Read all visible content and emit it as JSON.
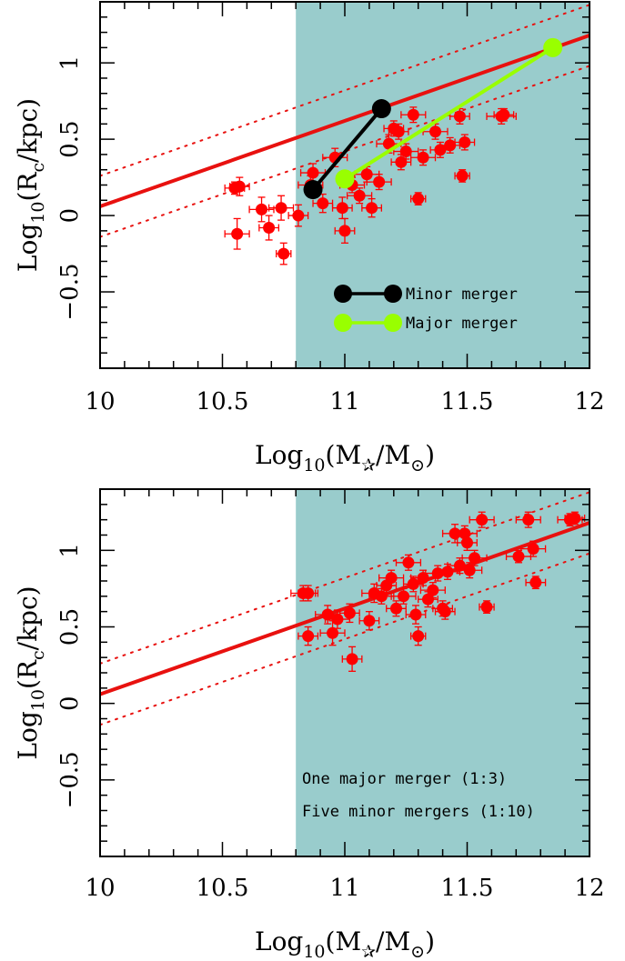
{
  "colors": {
    "shade": "#99cccc",
    "points": "#ff0000",
    "fit_line": "#e8110f",
    "minor_merger": "#000000",
    "major_merger": "#99ff00"
  },
  "chart_data": [
    {
      "type": "scatter",
      "panel": "top",
      "xlabel": {
        "pre": "Log",
        "sub": "10",
        "mid": "(M",
        "sub2": "✰",
        "mid2": "/M",
        "sub3": "⊙",
        "post": ")"
      },
      "ylabel": {
        "pre": "Log",
        "sub": "10",
        "mid": "(R",
        "sub2": "c",
        "post": "/kpc)"
      },
      "xlim": [
        10,
        12
      ],
      "ylim": [
        -1.0,
        1.4
      ],
      "xticks": [
        {
          "value": 10,
          "label": "10"
        },
        {
          "value": 10.5,
          "label": "10.5"
        },
        {
          "value": 11,
          "label": "11"
        },
        {
          "value": 11.5,
          "label": "11.5"
        },
        {
          "value": 12,
          "label": "12"
        }
      ],
      "yticks": [
        {
          "value": -0.5,
          "label": "−0.5"
        },
        {
          "value": 0,
          "label": "0"
        },
        {
          "value": 0.5,
          "label": "0.5"
        },
        {
          "value": 1,
          "label": "1"
        }
      ],
      "shaded_region": {
        "x_from": 10.8,
        "x_to": 12
      },
      "fit_line": {
        "x": [
          10,
          12
        ],
        "y": [
          0.06,
          1.18
        ]
      },
      "scatter_band": {
        "offset": 0.2
      },
      "points": [
        {
          "x": 10.55,
          "y": 0.18,
          "xerr": 0.04,
          "yerr": 0.04
        },
        {
          "x": 10.57,
          "y": 0.19,
          "xerr": 0.04,
          "yerr": 0.06
        },
        {
          "x": 10.56,
          "y": -0.12,
          "xerr": 0.05,
          "yerr": 0.1
        },
        {
          "x": 10.66,
          "y": 0.04,
          "xerr": 0.05,
          "yerr": 0.08
        },
        {
          "x": 10.69,
          "y": -0.08,
          "xerr": 0.04,
          "yerr": 0.08
        },
        {
          "x": 10.74,
          "y": 0.05,
          "xerr": 0.05,
          "yerr": 0.08
        },
        {
          "x": 10.75,
          "y": -0.25,
          "xerr": 0.03,
          "yerr": 0.07
        },
        {
          "x": 10.81,
          "y": 0.0,
          "xerr": 0.04,
          "yerr": 0.07
        },
        {
          "x": 10.86,
          "y": 0.2,
          "xerr": 0.05,
          "yerr": 0.06
        },
        {
          "x": 10.87,
          "y": 0.28,
          "xerr": 0.05,
          "yerr": 0.06
        },
        {
          "x": 10.91,
          "y": 0.08,
          "xerr": 0.04,
          "yerr": 0.06
        },
        {
          "x": 10.96,
          "y": 0.38,
          "xerr": 0.05,
          "yerr": 0.06
        },
        {
          "x": 10.99,
          "y": 0.05,
          "xerr": 0.04,
          "yerr": 0.07
        },
        {
          "x": 11.0,
          "y": -0.1,
          "xerr": 0.04,
          "yerr": 0.08
        },
        {
          "x": 11.03,
          "y": 0.2,
          "xerr": 0.05,
          "yerr": 0.05
        },
        {
          "x": 11.06,
          "y": 0.13,
          "xerr": 0.05,
          "yerr": 0.05
        },
        {
          "x": 11.09,
          "y": 0.27,
          "xerr": 0.05,
          "yerr": 0.05
        },
        {
          "x": 11.11,
          "y": 0.05,
          "xerr": 0.04,
          "yerr": 0.06
        },
        {
          "x": 11.14,
          "y": 0.22,
          "xerr": 0.05,
          "yerr": 0.05
        },
        {
          "x": 11.18,
          "y": 0.47,
          "xerr": 0.05,
          "yerr": 0.06
        },
        {
          "x": 11.2,
          "y": 0.57,
          "xerr": 0.04,
          "yerr": 0.05
        },
        {
          "x": 11.22,
          "y": 0.55,
          "xerr": 0.04,
          "yerr": 0.05
        },
        {
          "x": 11.23,
          "y": 0.35,
          "xerr": 0.04,
          "yerr": 0.05
        },
        {
          "x": 11.25,
          "y": 0.42,
          "xerr": 0.05,
          "yerr": 0.05
        },
        {
          "x": 11.28,
          "y": 0.66,
          "xerr": 0.05,
          "yerr": 0.05
        },
        {
          "x": 11.3,
          "y": 0.11,
          "xerr": 0.03,
          "yerr": 0.04
        },
        {
          "x": 11.32,
          "y": 0.38,
          "xerr": 0.05,
          "yerr": 0.05
        },
        {
          "x": 11.37,
          "y": 0.55,
          "xerr": 0.05,
          "yerr": 0.05
        },
        {
          "x": 11.39,
          "y": 0.43,
          "xerr": 0.04,
          "yerr": 0.05
        },
        {
          "x": 11.43,
          "y": 0.46,
          "xerr": 0.04,
          "yerr": 0.05
        },
        {
          "x": 11.47,
          "y": 0.65,
          "xerr": 0.04,
          "yerr": 0.05
        },
        {
          "x": 11.48,
          "y": 0.26,
          "xerr": 0.03,
          "yerr": 0.04
        },
        {
          "x": 11.49,
          "y": 0.48,
          "xerr": 0.04,
          "yerr": 0.05
        },
        {
          "x": 11.64,
          "y": 0.65,
          "xerr": 0.06,
          "yerr": 0.05
        },
        {
          "x": 11.65,
          "y": 0.66,
          "xerr": 0.04,
          "yerr": 0.04
        }
      ],
      "tracks": [
        {
          "name": "Minor merger",
          "color_key": "minor_merger",
          "x": [
            10.87,
            11.15
          ],
          "y": [
            0.17,
            0.7
          ]
        },
        {
          "name": "Major merger",
          "color_key": "major_merger",
          "x": [
            11.0,
            11.85
          ],
          "y": [
            0.24,
            1.1
          ]
        }
      ],
      "legend": [
        {
          "label": "Minor merger",
          "color_key": "minor_merger"
        },
        {
          "label": "Major merger",
          "color_key": "major_merger"
        }
      ]
    },
    {
      "type": "scatter",
      "panel": "bottom",
      "xlabel": {
        "pre": "Log",
        "sub": "10",
        "mid": "(M",
        "sub2": "✰",
        "mid2": "/M",
        "sub3": "⊙",
        "post": ")"
      },
      "ylabel": {
        "pre": "Log",
        "sub": "10",
        "mid": "(R",
        "sub2": "c",
        "post": "/kpc)"
      },
      "xlim": [
        10,
        12
      ],
      "ylim": [
        -1.0,
        1.4
      ],
      "xticks": [
        {
          "value": 10,
          "label": "10"
        },
        {
          "value": 10.5,
          "label": "10.5"
        },
        {
          "value": 11,
          "label": "11"
        },
        {
          "value": 11.5,
          "label": "11.5"
        },
        {
          "value": 12,
          "label": "12"
        }
      ],
      "yticks": [
        {
          "value": -0.5,
          "label": "−0.5"
        },
        {
          "value": 0,
          "label": "0"
        },
        {
          "value": 0.5,
          "label": "0.5"
        },
        {
          "value": 1,
          "label": "1"
        }
      ],
      "shaded_region": {
        "x_from": 10.8,
        "x_to": 12
      },
      "fit_line": {
        "x": [
          10,
          12
        ],
        "y": [
          0.06,
          1.18
        ]
      },
      "scatter_band": {
        "offset": 0.2
      },
      "points": [
        {
          "x": 10.83,
          "y": 0.72,
          "xerr": 0.05,
          "yerr": 0.05
        },
        {
          "x": 10.85,
          "y": 0.72,
          "xerr": 0.04,
          "yerr": 0.05
        },
        {
          "x": 10.85,
          "y": 0.44,
          "xerr": 0.04,
          "yerr": 0.06
        },
        {
          "x": 10.93,
          "y": 0.58,
          "xerr": 0.05,
          "yerr": 0.06
        },
        {
          "x": 10.95,
          "y": 0.46,
          "xerr": 0.05,
          "yerr": 0.08
        },
        {
          "x": 10.97,
          "y": 0.55,
          "xerr": 0.05,
          "yerr": 0.06
        },
        {
          "x": 11.02,
          "y": 0.59,
          "xerr": 0.04,
          "yerr": 0.06
        },
        {
          "x": 11.03,
          "y": 0.29,
          "xerr": 0.04,
          "yerr": 0.08
        },
        {
          "x": 11.1,
          "y": 0.54,
          "xerr": 0.04,
          "yerr": 0.06
        },
        {
          "x": 11.12,
          "y": 0.72,
          "xerr": 0.05,
          "yerr": 0.06
        },
        {
          "x": 11.15,
          "y": 0.7,
          "xerr": 0.05,
          "yerr": 0.05
        },
        {
          "x": 11.17,
          "y": 0.77,
          "xerr": 0.04,
          "yerr": 0.05
        },
        {
          "x": 11.19,
          "y": 0.82,
          "xerr": 0.05,
          "yerr": 0.05
        },
        {
          "x": 11.21,
          "y": 0.62,
          "xerr": 0.04,
          "yerr": 0.05
        },
        {
          "x": 11.24,
          "y": 0.7,
          "xerr": 0.05,
          "yerr": 0.05
        },
        {
          "x": 11.26,
          "y": 0.92,
          "xerr": 0.05,
          "yerr": 0.05
        },
        {
          "x": 11.28,
          "y": 0.78,
          "xerr": 0.04,
          "yerr": 0.05
        },
        {
          "x": 11.29,
          "y": 0.58,
          "xerr": 0.04,
          "yerr": 0.06
        },
        {
          "x": 11.3,
          "y": 0.44,
          "xerr": 0.03,
          "yerr": 0.06
        },
        {
          "x": 11.32,
          "y": 0.82,
          "xerr": 0.05,
          "yerr": 0.05
        },
        {
          "x": 11.34,
          "y": 0.68,
          "xerr": 0.04,
          "yerr": 0.05
        },
        {
          "x": 11.36,
          "y": 0.74,
          "xerr": 0.05,
          "yerr": 0.05
        },
        {
          "x": 11.38,
          "y": 0.85,
          "xerr": 0.05,
          "yerr": 0.05
        },
        {
          "x": 11.4,
          "y": 0.62,
          "xerr": 0.04,
          "yerr": 0.05
        },
        {
          "x": 11.41,
          "y": 0.6,
          "xerr": 0.04,
          "yerr": 0.05
        },
        {
          "x": 11.42,
          "y": 0.86,
          "xerr": 0.05,
          "yerr": 0.05
        },
        {
          "x": 11.45,
          "y": 1.11,
          "xerr": 0.05,
          "yerr": 0.06
        },
        {
          "x": 11.47,
          "y": 0.9,
          "xerr": 0.05,
          "yerr": 0.05
        },
        {
          "x": 11.49,
          "y": 1.11,
          "xerr": 0.05,
          "yerr": 0.05
        },
        {
          "x": 11.5,
          "y": 1.05,
          "xerr": 0.04,
          "yerr": 0.05
        },
        {
          "x": 11.51,
          "y": 0.87,
          "xerr": 0.05,
          "yerr": 0.05
        },
        {
          "x": 11.53,
          "y": 0.95,
          "xerr": 0.05,
          "yerr": 0.05
        },
        {
          "x": 11.56,
          "y": 1.2,
          "xerr": 0.05,
          "yerr": 0.05
        },
        {
          "x": 11.58,
          "y": 0.63,
          "xerr": 0.03,
          "yerr": 0.04
        },
        {
          "x": 11.71,
          "y": 0.96,
          "xerr": 0.05,
          "yerr": 0.04
        },
        {
          "x": 11.75,
          "y": 1.2,
          "xerr": 0.05,
          "yerr": 0.05
        },
        {
          "x": 11.77,
          "y": 1.01,
          "xerr": 0.05,
          "yerr": 0.05
        },
        {
          "x": 11.78,
          "y": 0.79,
          "xerr": 0.04,
          "yerr": 0.04
        },
        {
          "x": 11.92,
          "y": 1.2,
          "xerr": 0.05,
          "yerr": 0.04
        },
        {
          "x": 11.94,
          "y": 1.21,
          "xerr": 0.04,
          "yerr": 0.04
        }
      ],
      "annotations": [
        {
          "text": "One major merger (1:3)"
        },
        {
          "text": "Five minor mergers (1:10)"
        }
      ]
    }
  ]
}
